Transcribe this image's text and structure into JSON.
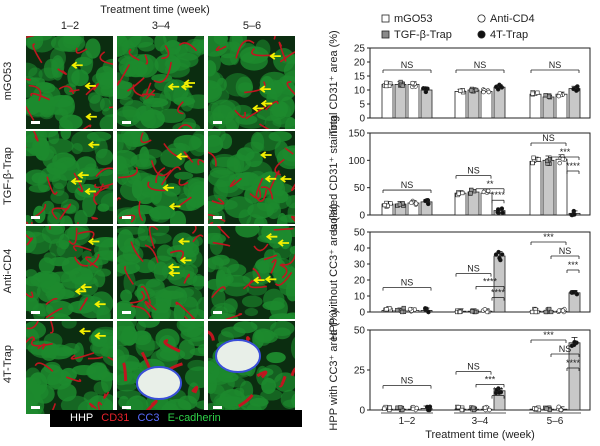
{
  "micrographs": {
    "column_header_title": "Treatment time (week)",
    "columns": [
      "1–2",
      "3–4",
      "5–6"
    ],
    "rows": [
      "mGO53",
      "TGF-β-Trap",
      "Anti-CD4",
      "4T-Trap"
    ],
    "stain_legend": [
      {
        "label": "HHP",
        "color": "#ffffff"
      },
      {
        "label": "CD31",
        "color": "#e8222a"
      },
      {
        "label": "CC3",
        "color": "#3a4fd8"
      },
      {
        "label": "E-cadherin",
        "color": "#2ed148"
      }
    ],
    "colors": {
      "epithelium": "#1d8a2e",
      "vessel": "#c0161f",
      "arrow": "#f4f000",
      "background": "#0b2d10"
    }
  },
  "chart_data": [
    {
      "type": "bar",
      "ylabel": "Total CD31⁺ area (%)",
      "ylim": [
        0,
        25
      ],
      "yticks": [
        "0",
        "5",
        "10",
        "15",
        "20",
        "25"
      ],
      "categories": [
        "1–2",
        "3–4",
        "5–6"
      ],
      "series": [
        {
          "name": "mGO53",
          "values": [
            12,
            9.5,
            8.5
          ]
        },
        {
          "name": "TGF-β-Trap",
          "values": [
            12,
            10,
            7.5
          ]
        },
        {
          "name": "Anti-CD4",
          "values": [
            12,
            9.5,
            8.5
          ]
        },
        {
          "name": "4T-Trap",
          "values": [
            10,
            11,
            10.5
          ]
        }
      ],
      "annotations": [
        "NS",
        "NS",
        "NS"
      ]
    },
    {
      "type": "bar",
      "ylabel": "Isolated CD31⁺ staining",
      "ylim": [
        0,
        150
      ],
      "yticks": [
        "0",
        "50",
        "100",
        "150"
      ],
      "categories": [
        "1–2",
        "3–4",
        "5–6"
      ],
      "series": [
        {
          "name": "mGO53",
          "values": [
            20,
            40,
            98
          ]
        },
        {
          "name": "TGF-β-Trap",
          "values": [
            20,
            42,
            100
          ]
        },
        {
          "name": "Anti-CD4",
          "values": [
            22,
            40,
            102
          ]
        },
        {
          "name": "4T-Trap",
          "values": [
            24,
            8,
            3
          ]
        }
      ],
      "annotations": [
        "NS",
        "NS",
        "**",
        "****",
        "NS",
        "***",
        "****"
      ]
    },
    {
      "type": "bar",
      "ylabel": "HPP without CC3⁺ area (%)",
      "ylim": [
        0,
        50
      ],
      "yticks": [
        "0",
        "10",
        "20",
        "30",
        "40",
        "50"
      ],
      "categories": [
        "1–2",
        "3–4",
        "5–6"
      ],
      "series": [
        {
          "name": "mGO53",
          "values": [
            1,
            0.5,
            0.5
          ]
        },
        {
          "name": "TGF-β-Trap",
          "values": [
            1,
            0.5,
            0.5
          ]
        },
        {
          "name": "Anti-CD4",
          "values": [
            1,
            0.5,
            0.5
          ]
        },
        {
          "name": "4T-Trap",
          "values": [
            1,
            35,
            12
          ]
        }
      ],
      "annotations": [
        "NS",
        "NS",
        "****",
        "****",
        "***",
        "NS",
        "***"
      ]
    },
    {
      "type": "bar",
      "ylabel": "HPP with CC3⁺ area (%)",
      "ylim": [
        0,
        50
      ],
      "yticks": [
        "0",
        "25",
        "50"
      ],
      "categories": [
        "1–2",
        "3–4",
        "5–6"
      ],
      "series": [
        {
          "name": "mGO53",
          "values": [
            0.5,
            0.5,
            0.5
          ]
        },
        {
          "name": "TGF-β-Trap",
          "values": [
            0.5,
            0.5,
            0.5
          ]
        },
        {
          "name": "Anti-CD4",
          "values": [
            0.5,
            0.5,
            0.5
          ]
        },
        {
          "name": "4T-Trap",
          "values": [
            1,
            12,
            42
          ]
        }
      ],
      "annotations": [
        "NS",
        "NS",
        "***",
        "***",
        "***",
        "NS",
        "****"
      ],
      "xlabel": "Treatment time (week)"
    }
  ],
  "series_legend": [
    {
      "name": "mGO53",
      "marker": "open-square",
      "bar": "#ffffff"
    },
    {
      "name": "Anti-CD4",
      "marker": "open-circle",
      "bar": "#ffffff"
    },
    {
      "name": "TGF-β-Trap",
      "marker": "filled-square",
      "bar": "#c8c8c8"
    },
    {
      "name": "4T-Trap",
      "marker": "filled-circle",
      "bar": "#c8c8c8"
    }
  ]
}
